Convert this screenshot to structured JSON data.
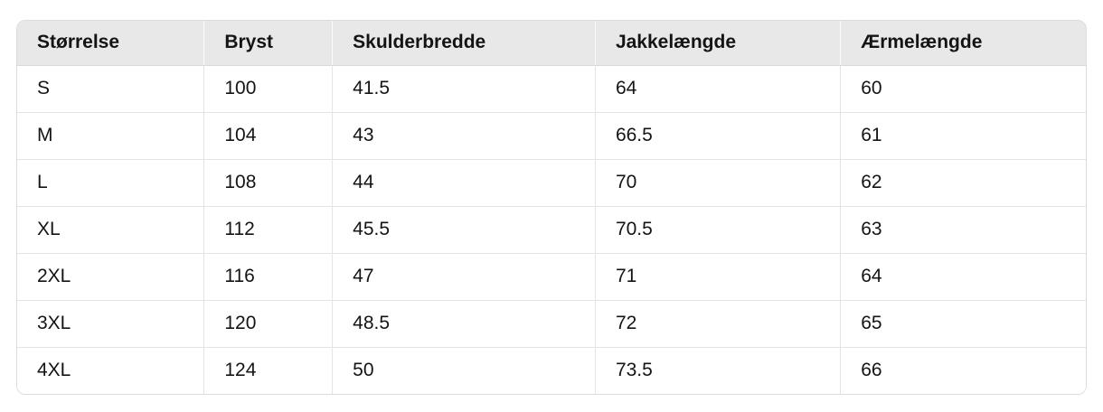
{
  "size_chart": {
    "columns": [
      {
        "key": "stoerrelse",
        "label": "Størrelse"
      },
      {
        "key": "bryst",
        "label": "Bryst"
      },
      {
        "key": "skulderbredde",
        "label": "Skulderbredde"
      },
      {
        "key": "jakkelaengde",
        "label": "Jakkelængde"
      },
      {
        "key": "aermelaengde",
        "label": "Ærmelængde"
      }
    ],
    "rows": [
      {
        "stoerrelse": "S",
        "bryst": "100",
        "skulderbredde": "41.5",
        "jakkelaengde": "64",
        "aermelaengde": "60"
      },
      {
        "stoerrelse": "M",
        "bryst": "104",
        "skulderbredde": "43",
        "jakkelaengde": "66.5",
        "aermelaengde": "61"
      },
      {
        "stoerrelse": "L",
        "bryst": "108",
        "skulderbredde": "44",
        "jakkelaengde": "70",
        "aermelaengde": "62"
      },
      {
        "stoerrelse": "XL",
        "bryst": "112",
        "skulderbredde": "45.5",
        "jakkelaengde": "70.5",
        "aermelaengde": "63"
      },
      {
        "stoerrelse": "2XL",
        "bryst": "116",
        "skulderbredde": "47",
        "jakkelaengde": "71",
        "aermelaengde": "64"
      },
      {
        "stoerrelse": "3XL",
        "bryst": "120",
        "skulderbredde": "48.5",
        "jakkelaengde": "72",
        "aermelaengde": "65"
      },
      {
        "stoerrelse": "4XL",
        "bryst": "124",
        "skulderbredde": "50",
        "jakkelaengde": "73.5",
        "aermelaengde": "66"
      }
    ],
    "colors": {
      "header_bg": "#e8e8e8",
      "row_divider": "#e4e4e4",
      "outer_border": "#dcdcdc",
      "text": "#141414"
    }
  }
}
